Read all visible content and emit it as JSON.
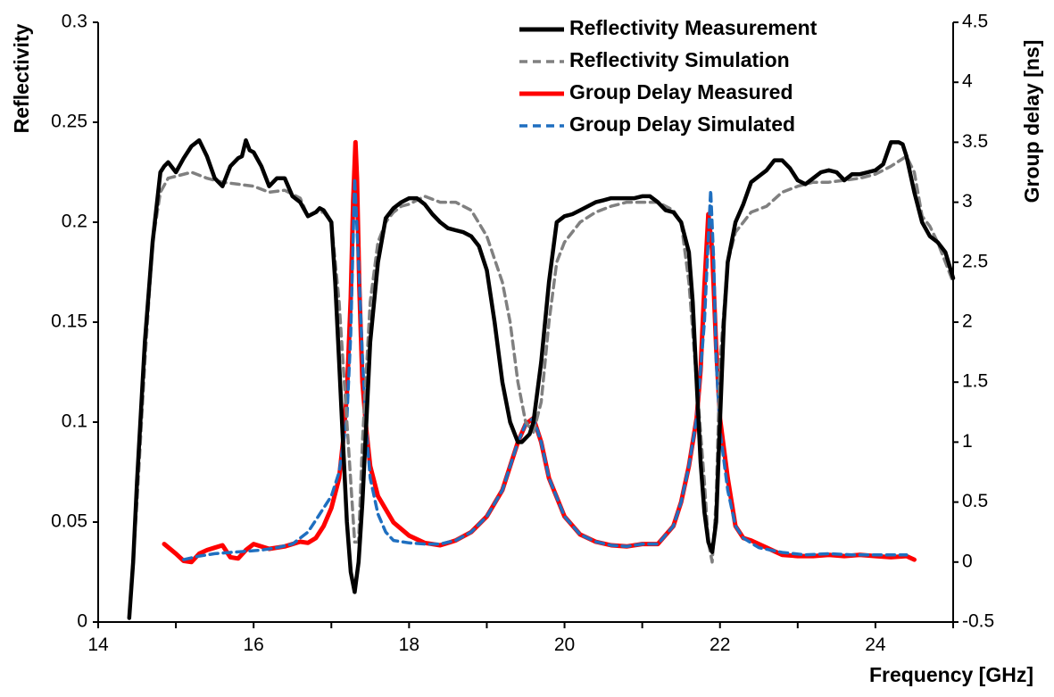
{
  "chart_data": {
    "type": "line",
    "xlabel": "Frequency [GHz]",
    "ylabel": "Reflectivity",
    "y2label": "Group delay [ns]",
    "xlim": [
      14,
      25
    ],
    "ylim": [
      0,
      0.3
    ],
    "y2lim": [
      -0.5,
      4.5
    ],
    "xticks": [
      14,
      16,
      18,
      20,
      22,
      24
    ],
    "yticks": [
      0,
      0.05,
      0.1,
      0.15,
      0.2,
      0.25,
      0.3
    ],
    "yticklabels": [
      "0",
      "0.05",
      "0.1",
      "0.15",
      "0.2",
      "0.25",
      "0.3"
    ],
    "y2ticks": [
      -0.5,
      0,
      0.5,
      1,
      1.5,
      2,
      2.5,
      3,
      3.5,
      4,
      4.5
    ],
    "y2ticklabels": [
      "-0.5",
      "0",
      "0.5",
      "1",
      "1.5",
      "2",
      "2.5",
      "3",
      "3.5",
      "4",
      "4.5"
    ],
    "legend_position": "top-right",
    "series": [
      {
        "name": "Reflectivity Measurement",
        "axis": "left",
        "color": "#000000",
        "dash": "solid",
        "x": [
          14.4,
          14.45,
          14.5,
          14.6,
          14.7,
          14.8,
          14.85,
          14.9,
          15.0,
          15.1,
          15.2,
          15.3,
          15.4,
          15.5,
          15.6,
          15.7,
          15.8,
          15.85,
          15.9,
          15.95,
          16.0,
          16.1,
          16.2,
          16.3,
          16.4,
          16.5,
          16.6,
          16.7,
          16.8,
          16.85,
          16.9,
          17.0,
          17.05,
          17.1,
          17.15,
          17.2,
          17.25,
          17.3,
          17.35,
          17.4,
          17.45,
          17.5,
          17.6,
          17.7,
          17.8,
          17.9,
          18.0,
          18.1,
          18.2,
          18.3,
          18.4,
          18.5,
          18.6,
          18.7,
          18.8,
          18.9,
          19.0,
          19.1,
          19.2,
          19.3,
          19.4,
          19.45,
          19.5,
          19.55,
          19.6,
          19.7,
          19.8,
          19.9,
          20.0,
          20.1,
          20.2,
          20.3,
          20.4,
          20.5,
          20.6,
          20.7,
          20.8,
          20.9,
          21.0,
          21.1,
          21.2,
          21.3,
          21.4,
          21.5,
          21.6,
          21.65,
          21.7,
          21.75,
          21.8,
          21.85,
          21.9,
          21.95,
          22.0,
          22.05,
          22.1,
          22.2,
          22.3,
          22.4,
          22.5,
          22.6,
          22.7,
          22.8,
          22.9,
          23.0,
          23.1,
          23.2,
          23.3,
          23.4,
          23.5,
          23.6,
          23.7,
          23.8,
          23.9,
          24.0,
          24.1,
          24.2,
          24.3,
          24.35,
          24.4,
          24.5,
          24.6,
          24.7,
          24.8,
          24.9,
          25.0
        ],
        "values": [
          0.002,
          0.03,
          0.07,
          0.14,
          0.19,
          0.225,
          0.228,
          0.23,
          0.225,
          0.232,
          0.238,
          0.241,
          0.233,
          0.222,
          0.218,
          0.228,
          0.232,
          0.233,
          0.241,
          0.236,
          0.235,
          0.228,
          0.218,
          0.222,
          0.222,
          0.213,
          0.21,
          0.203,
          0.205,
          0.207,
          0.206,
          0.2,
          0.17,
          0.13,
          0.09,
          0.05,
          0.025,
          0.015,
          0.03,
          0.06,
          0.1,
          0.14,
          0.18,
          0.202,
          0.207,
          0.21,
          0.212,
          0.212,
          0.209,
          0.204,
          0.2,
          0.197,
          0.196,
          0.195,
          0.193,
          0.188,
          0.176,
          0.15,
          0.12,
          0.1,
          0.09,
          0.09,
          0.092,
          0.094,
          0.1,
          0.13,
          0.17,
          0.2,
          0.203,
          0.204,
          0.206,
          0.208,
          0.21,
          0.211,
          0.212,
          0.212,
          0.212,
          0.212,
          0.213,
          0.213,
          0.21,
          0.206,
          0.205,
          0.2,
          0.185,
          0.16,
          0.12,
          0.08,
          0.055,
          0.04,
          0.035,
          0.05,
          0.1,
          0.15,
          0.18,
          0.2,
          0.209,
          0.22,
          0.223,
          0.226,
          0.231,
          0.231,
          0.227,
          0.221,
          0.219,
          0.222,
          0.225,
          0.226,
          0.225,
          0.221,
          0.224,
          0.224,
          0.225,
          0.226,
          0.229,
          0.24,
          0.24,
          0.239,
          0.233,
          0.215,
          0.2,
          0.193,
          0.19,
          0.185,
          0.172
        ]
      },
      {
        "name": "Reflectivity Simulation",
        "axis": "left",
        "color": "#808080",
        "dash": "dashed",
        "x": [
          14.4,
          14.5,
          14.6,
          14.7,
          14.8,
          14.9,
          15.0,
          15.2,
          15.4,
          15.6,
          15.8,
          16.0,
          16.2,
          16.4,
          16.6,
          16.7,
          16.8,
          16.9,
          17.0,
          17.1,
          17.2,
          17.3,
          17.35,
          17.4,
          17.5,
          17.6,
          17.7,
          17.8,
          17.9,
          18.0,
          18.2,
          18.4,
          18.6,
          18.8,
          19.0,
          19.2,
          19.3,
          19.4,
          19.5,
          19.6,
          19.7,
          19.8,
          19.9,
          20.0,
          20.2,
          20.4,
          20.6,
          20.8,
          21.0,
          21.2,
          21.4,
          21.5,
          21.6,
          21.7,
          21.8,
          21.85,
          21.9,
          21.95,
          22.0,
          22.1,
          22.2,
          22.3,
          22.4,
          22.6,
          22.8,
          23.0,
          23.2,
          23.4,
          23.6,
          23.8,
          24.0,
          24.2,
          24.4,
          24.5,
          24.6,
          24.7,
          24.8,
          25.0
        ],
        "values": [
          0.002,
          0.06,
          0.13,
          0.19,
          0.215,
          0.222,
          0.223,
          0.225,
          0.222,
          0.22,
          0.219,
          0.218,
          0.215,
          0.216,
          0.212,
          0.203,
          0.205,
          0.205,
          0.2,
          0.16,
          0.1,
          0.04,
          0.04,
          0.09,
          0.16,
          0.19,
          0.2,
          0.205,
          0.208,
          0.209,
          0.213,
          0.21,
          0.21,
          0.206,
          0.193,
          0.17,
          0.15,
          0.12,
          0.1,
          0.095,
          0.11,
          0.15,
          0.18,
          0.19,
          0.2,
          0.205,
          0.208,
          0.21,
          0.21,
          0.21,
          0.206,
          0.2,
          0.17,
          0.12,
          0.07,
          0.04,
          0.03,
          0.06,
          0.13,
          0.18,
          0.195,
          0.2,
          0.205,
          0.208,
          0.215,
          0.218,
          0.22,
          0.22,
          0.221,
          0.222,
          0.224,
          0.228,
          0.233,
          0.225,
          0.203,
          0.198,
          0.19,
          0.17
        ]
      },
      {
        "name": "Group Delay Measured",
        "axis": "right",
        "color": "#ff0000",
        "dash": "solid",
        "x": [
          14.85,
          15.0,
          15.1,
          15.2,
          15.3,
          15.4,
          15.5,
          15.6,
          15.7,
          15.8,
          15.9,
          16.0,
          16.2,
          16.4,
          16.6,
          16.7,
          16.8,
          16.9,
          17.0,
          17.1,
          17.15,
          17.2,
          17.25,
          17.28,
          17.31,
          17.33,
          17.36,
          17.4,
          17.45,
          17.5,
          17.6,
          17.8,
          18.0,
          18.2,
          18.4,
          18.6,
          18.8,
          19.0,
          19.2,
          19.4,
          19.5,
          19.6,
          19.7,
          19.8,
          20.0,
          20.2,
          20.4,
          20.6,
          20.8,
          21.0,
          21.2,
          21.4,
          21.5,
          21.6,
          21.7,
          21.75,
          21.8,
          21.85,
          21.9,
          21.95,
          22.0,
          22.1,
          22.2,
          22.3,
          22.4,
          22.6,
          22.8,
          23.0,
          23.2,
          23.4,
          23.6,
          23.8,
          24.0,
          24.2,
          24.4,
          24.5
        ],
        "values": [
          0.15,
          0.07,
          0.01,
          0.0,
          0.07,
          0.1,
          0.12,
          0.14,
          0.04,
          0.03,
          0.1,
          0.15,
          0.11,
          0.13,
          0.17,
          0.16,
          0.2,
          0.3,
          0.45,
          0.7,
          1.0,
          1.4,
          2.2,
          3.0,
          3.5,
          3.2,
          2.3,
          1.5,
          1.1,
          0.8,
          0.55,
          0.33,
          0.22,
          0.16,
          0.14,
          0.18,
          0.25,
          0.38,
          0.6,
          1.0,
          1.15,
          1.2,
          1.0,
          0.7,
          0.38,
          0.23,
          0.17,
          0.14,
          0.13,
          0.15,
          0.15,
          0.3,
          0.5,
          0.8,
          1.2,
          1.6,
          2.3,
          2.9,
          2.6,
          1.8,
          1.2,
          0.7,
          0.3,
          0.2,
          0.18,
          0.12,
          0.06,
          0.05,
          0.05,
          0.06,
          0.05,
          0.06,
          0.05,
          0.04,
          0.05,
          0.02
        ]
      },
      {
        "name": "Group Delay Simulated",
        "axis": "right",
        "color": "#1f6fc0",
        "dash": "dashed",
        "x": [
          15.1,
          15.3,
          15.5,
          15.7,
          15.9,
          16.1,
          16.3,
          16.5,
          16.7,
          16.8,
          16.9,
          17.0,
          17.1,
          17.2,
          17.25,
          17.3,
          17.35,
          17.4,
          17.45,
          17.5,
          17.6,
          17.7,
          17.8,
          18.0,
          18.2,
          18.4,
          18.6,
          18.8,
          19.0,
          19.2,
          19.4,
          19.5,
          19.6,
          19.7,
          19.8,
          20.0,
          20.2,
          20.4,
          20.6,
          20.8,
          21.0,
          21.2,
          21.4,
          21.5,
          21.6,
          21.7,
          21.8,
          21.85,
          21.88,
          21.92,
          21.95,
          22.0,
          22.1,
          22.2,
          22.3,
          22.5,
          22.8,
          23.1,
          23.4,
          23.7,
          24.0,
          24.3,
          24.4
        ],
        "values": [
          0.02,
          0.05,
          0.07,
          0.08,
          0.09,
          0.1,
          0.12,
          0.15,
          0.25,
          0.35,
          0.45,
          0.55,
          0.75,
          1.2,
          1.9,
          3.2,
          2.5,
          1.7,
          1.1,
          0.7,
          0.4,
          0.25,
          0.18,
          0.16,
          0.15,
          0.15,
          0.18,
          0.25,
          0.38,
          0.6,
          1.0,
          1.15,
          1.2,
          1.0,
          0.7,
          0.38,
          0.23,
          0.17,
          0.14,
          0.13,
          0.15,
          0.15,
          0.3,
          0.5,
          0.8,
          1.2,
          2.0,
          2.7,
          3.1,
          2.5,
          1.7,
          1.1,
          0.6,
          0.3,
          0.2,
          0.12,
          0.08,
          0.06,
          0.07,
          0.06,
          0.06,
          0.06,
          0.06
        ]
      }
    ]
  }
}
